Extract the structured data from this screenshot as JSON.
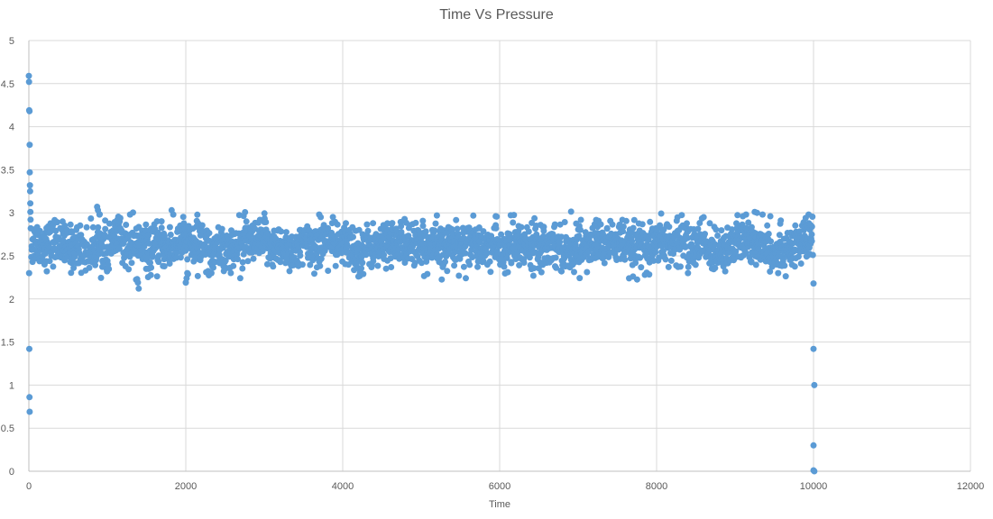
{
  "chart_data": {
    "type": "scatter",
    "title": "Time Vs Pressure",
    "xlabel": "Time",
    "ylabel": "",
    "xlim": [
      0,
      12000
    ],
    "ylim": [
      0,
      5
    ],
    "xticks": [
      "0",
      "2000",
      "4000",
      "6000",
      "8000",
      "10000",
      "12000"
    ],
    "yticks": [
      "0",
      "0.5",
      "1",
      "1.5",
      "2",
      "2.5",
      "3",
      "3.5",
      "4",
      "4.5",
      "5"
    ],
    "grid": true,
    "legend": "none",
    "marker_color": "#5B9BD5",
    "series": [
      {
        "points": [
          [
            0,
            4.59
          ],
          [
            2,
            4.52
          ],
          [
            5,
            4.19
          ],
          [
            8,
            4.18
          ],
          [
            10,
            3.79
          ],
          [
            12,
            3.47
          ],
          [
            14,
            3.32
          ],
          [
            16,
            3.25
          ],
          [
            18,
            3.11
          ],
          [
            20,
            3.01
          ],
          [
            22,
            2.92
          ],
          [
            24,
            2.82
          ],
          [
            4,
            2.3
          ],
          [
            6,
            1.42
          ],
          [
            8,
            0.86
          ],
          [
            10,
            0.69
          ],
          [
            870,
            3.07
          ],
          [
            880,
            3.03
          ],
          [
            900,
            2.98
          ],
          [
            1290,
            2.98
          ],
          [
            1380,
            2.23
          ],
          [
            1390,
            2.19
          ],
          [
            1400,
            2.12
          ],
          [
            1820,
            3.03
          ],
          [
            1840,
            2.98
          ],
          [
            2000,
            2.19
          ],
          [
            2010,
            2.24
          ],
          [
            2020,
            2.3
          ],
          [
            3700,
            2.98
          ],
          [
            3720,
            2.95
          ],
          [
            4200,
            2.26
          ],
          [
            4220,
            2.3
          ],
          [
            5200,
            2.97
          ],
          [
            5950,
            2.96
          ],
          [
            6430,
            2.27
          ],
          [
            7650,
            2.24
          ],
          [
            7700,
            2.26
          ],
          [
            7850,
            2.28
          ],
          [
            8400,
            2.3
          ],
          [
            8600,
            2.95
          ],
          [
            9250,
            3.01
          ],
          [
            9280,
            3.0
          ],
          [
            9350,
            2.98
          ],
          [
            9450,
            2.96
          ],
          [
            9550,
            2.3
          ],
          [
            9900,
            2.94
          ],
          [
            9940,
            2.88
          ],
          [
            9960,
            2.86
          ],
          [
            10000,
            2.18
          ],
          [
            10000,
            1.42
          ],
          [
            10010,
            1.0
          ],
          [
            10000,
            0.3
          ],
          [
            10000,
            0.01
          ],
          [
            10010,
            0.0
          ]
        ]
      }
    ],
    "dense_band": {
      "x_start": 30,
      "x_end": 9990,
      "count": 2600,
      "center": 2.62,
      "spread": 0.16,
      "min": 2.22,
      "max": 3.02
    }
  }
}
